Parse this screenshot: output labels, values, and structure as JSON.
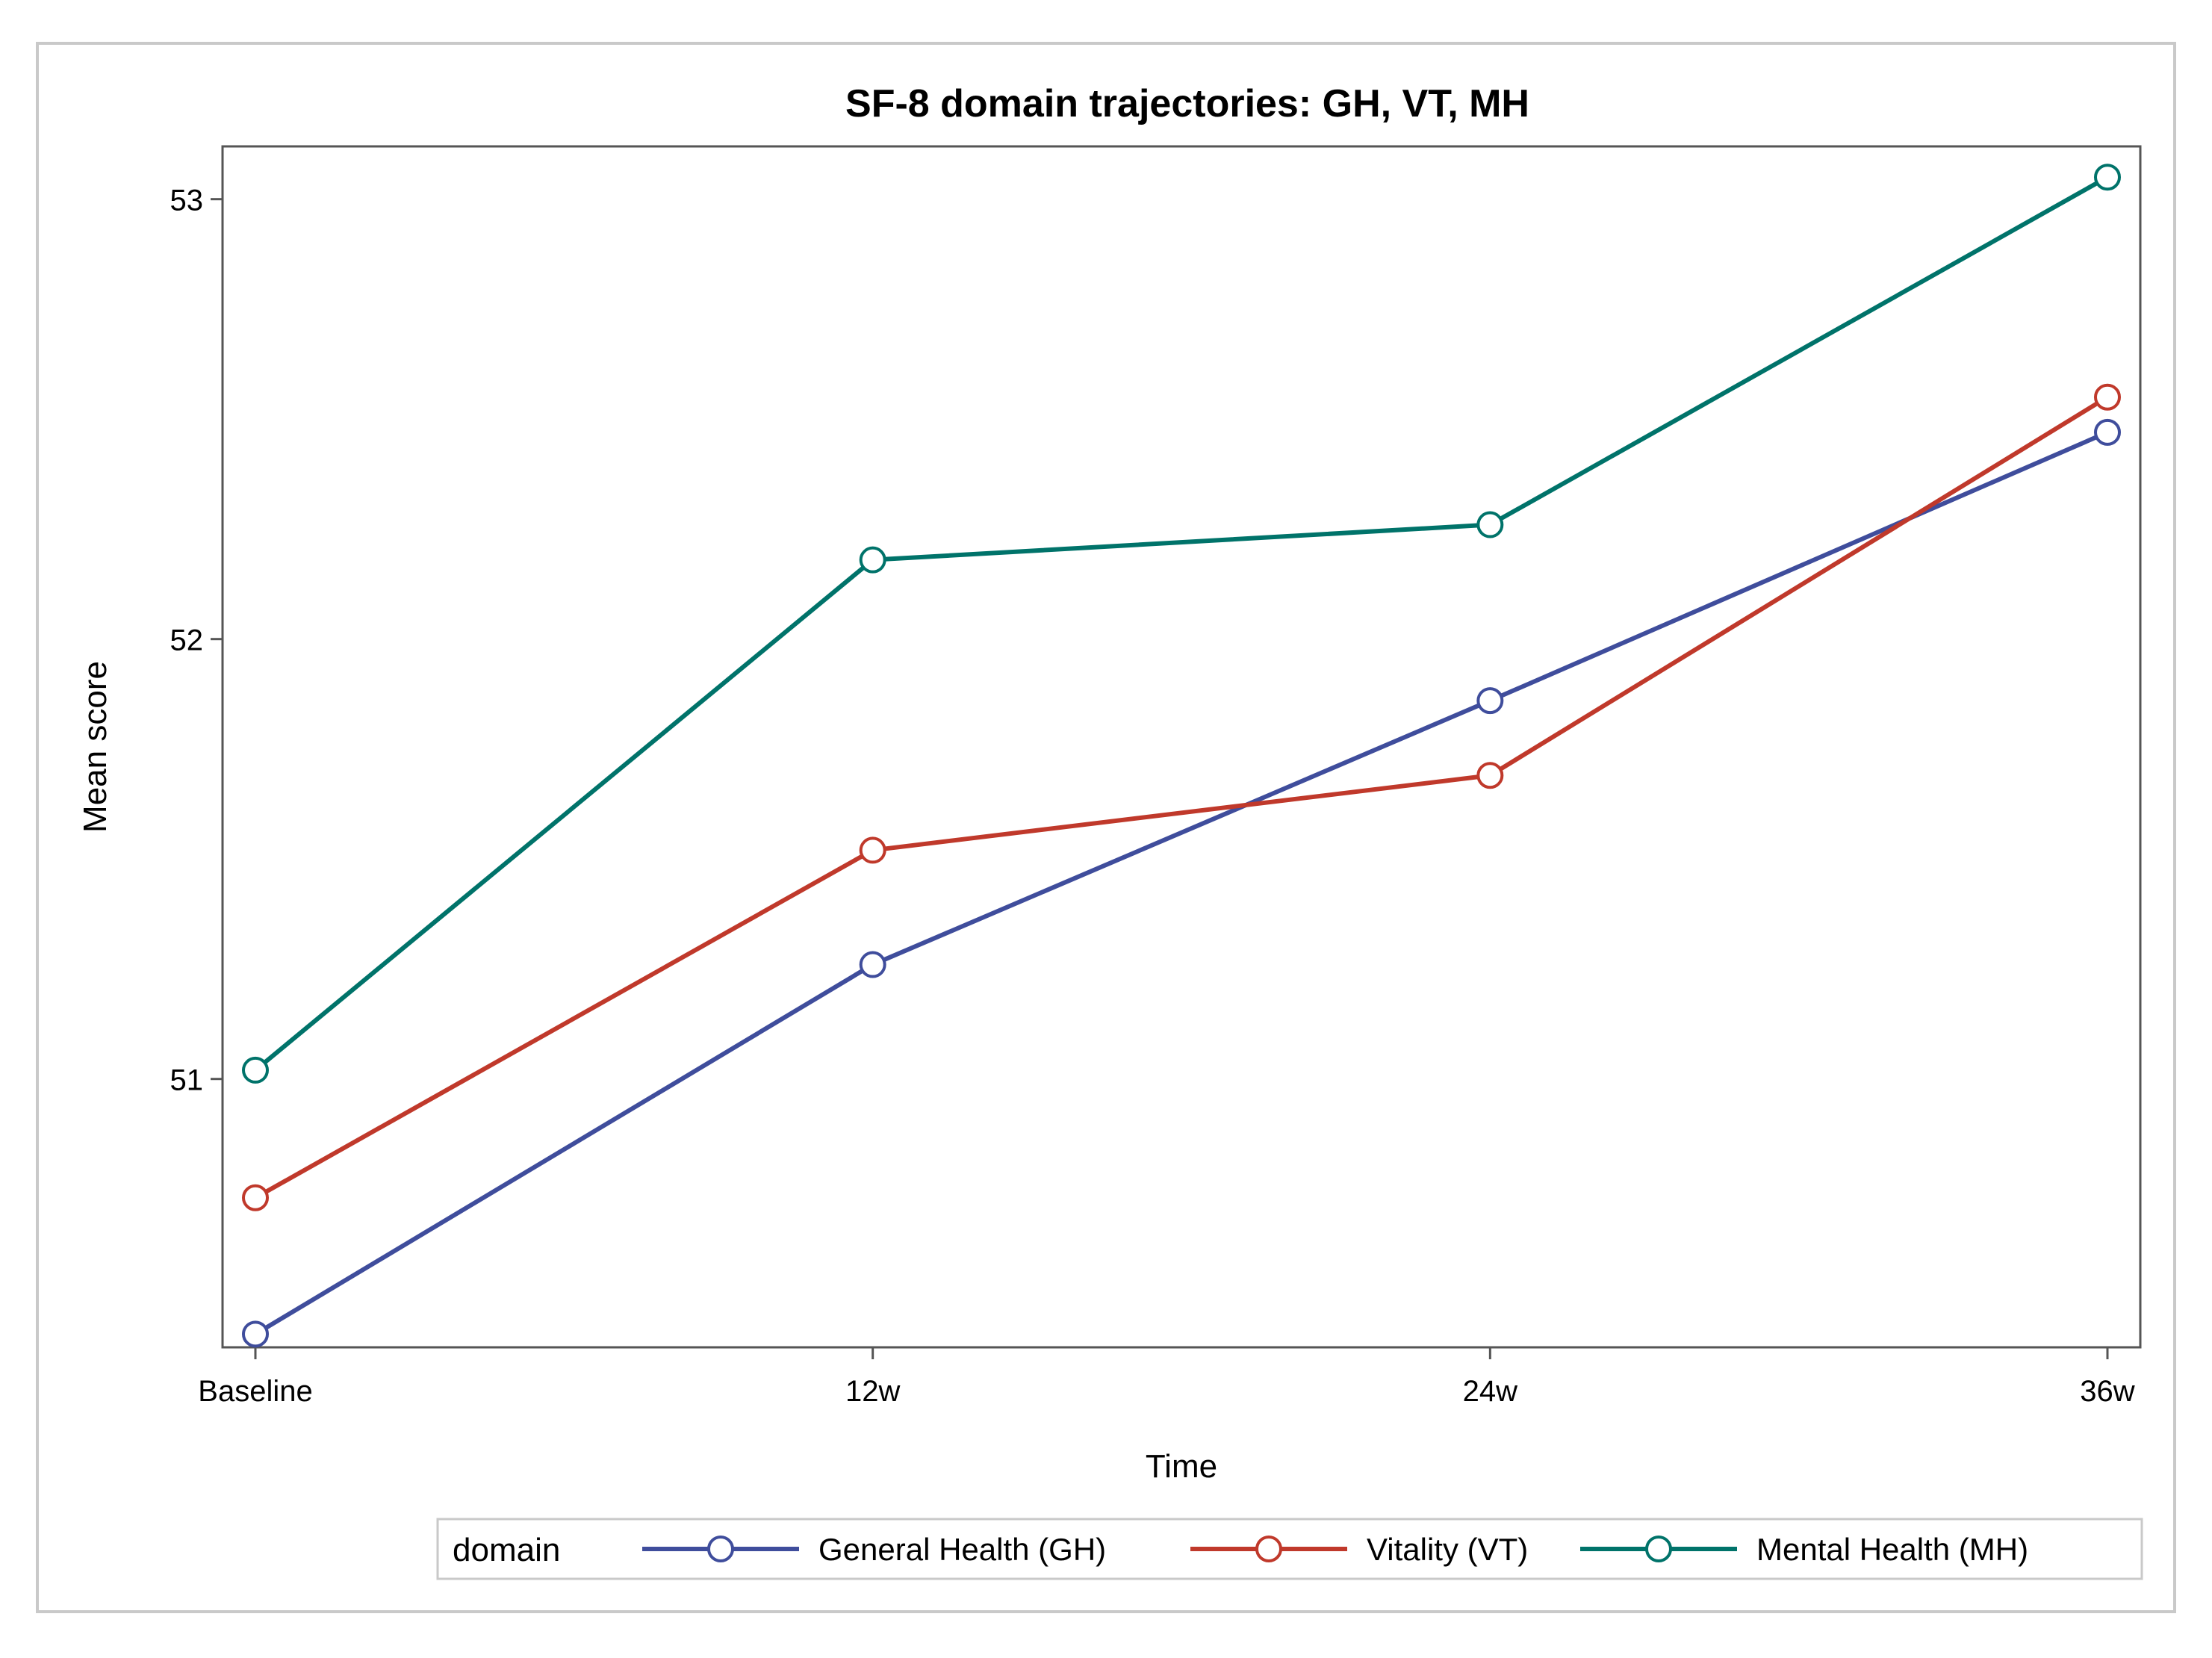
{
  "chart_data": {
    "type": "line",
    "title": "SF-8 domain trajectories: GH, VT, MH",
    "xlabel": "Time",
    "ylabel": "Mean score",
    "categories": [
      "Baseline",
      "12w",
      "24w",
      "36w"
    ],
    "yticks": [
      "51",
      "52",
      "53"
    ],
    "ylim": [
      50.39,
      53.12
    ],
    "grid": false,
    "legend": {
      "title": "domain",
      "placement": "bottom"
    },
    "series": [
      {
        "name": "General Health (GH)",
        "color": "#3f4d9c",
        "values": [
          50.42,
          51.26,
          51.86,
          52.47
        ]
      },
      {
        "name": "Vitality (VT)",
        "color": "#c0392b",
        "values": [
          50.73,
          51.52,
          51.69,
          52.55
        ]
      },
      {
        "name": "Mental Health (MH)",
        "color": "#00736a",
        "values": [
          51.02,
          52.18,
          52.26,
          53.05
        ]
      }
    ]
  }
}
